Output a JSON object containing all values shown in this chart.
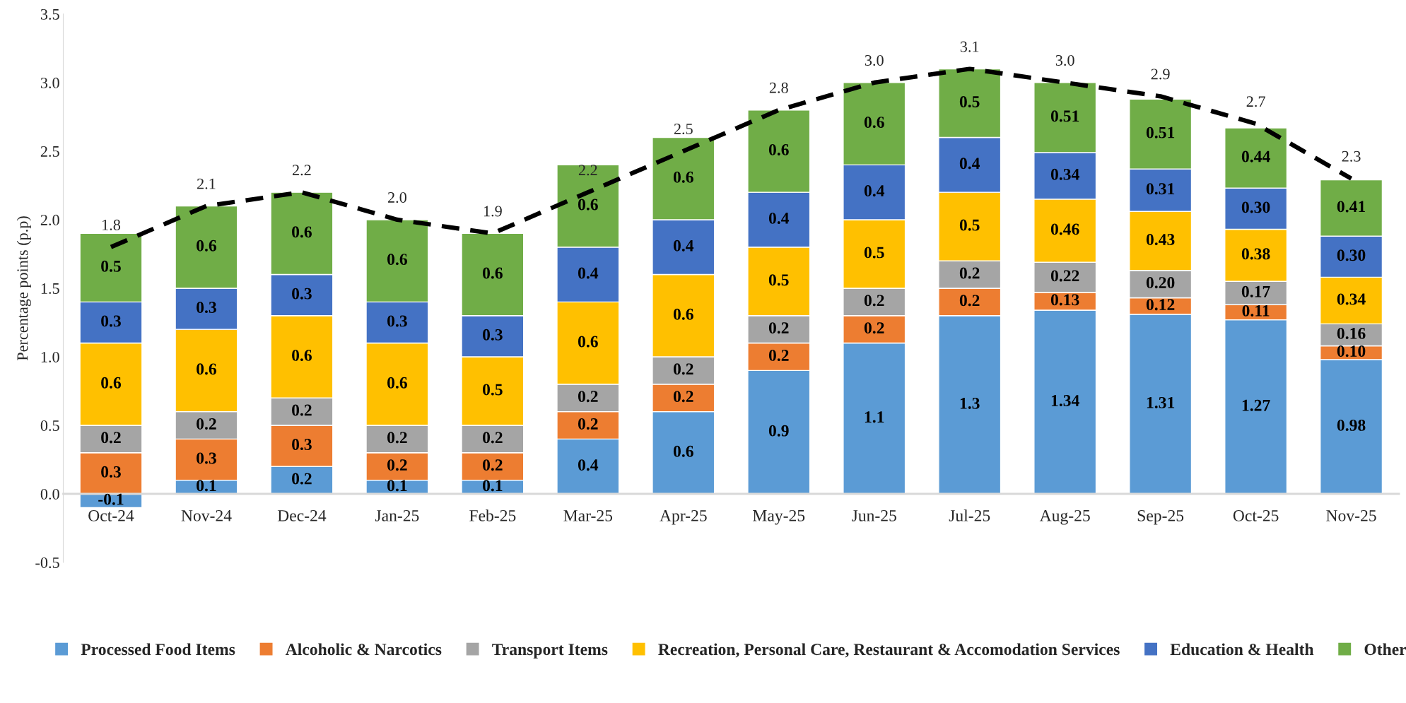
{
  "chart_data": {
    "type": "bar",
    "stacked": true,
    "ylabel": "Percentage points (p.p)",
    "categories": [
      "Oct-24",
      "Nov-24",
      "Dec-24",
      "Jan-25",
      "Feb-25",
      "Mar-25",
      "Apr-25",
      "May-25",
      "Jun-25",
      "Jul-25",
      "Aug-25",
      "Sep-25",
      "Oct-25",
      "Nov-25"
    ],
    "ylim": [
      -0.5,
      3.5
    ],
    "yticks": [
      {
        "value": -0.5,
        "label": "-0.5"
      },
      {
        "value": 0,
        "label": "0.0"
      },
      {
        "value": 0.5,
        "label": "0.5"
      },
      {
        "value": 1,
        "label": "1.0"
      },
      {
        "value": 1.5,
        "label": "1.5"
      },
      {
        "value": 2,
        "label": "2.0"
      },
      {
        "value": 2.5,
        "label": "2.5"
      },
      {
        "value": 3,
        "label": "3.0"
      },
      {
        "value": 3.5,
        "label": "3.5"
      }
    ],
    "grid": false,
    "legend": "bottom",
    "series": [
      {
        "name": "Processed Food Items",
        "color": "#5b9bd5",
        "values": [
          -0.1,
          0.1,
          0.2,
          0.1,
          0.1,
          0.4,
          0.6,
          0.9,
          1.1,
          1.3,
          1.34,
          1.31,
          1.27,
          0.98
        ],
        "value_labels": [
          "-0.1",
          "0.1",
          "0.2",
          "0.1",
          "0.1",
          "0.4",
          "0.6",
          "0.9",
          "1.1",
          "1.3",
          "1.34",
          "1.31",
          "1.27",
          "0.98"
        ]
      },
      {
        "name": "Alcoholic & Narcotics",
        "color": "#ed7d31",
        "values": [
          0.3,
          0.3,
          0.3,
          0.2,
          0.2,
          0.2,
          0.2,
          0.2,
          0.2,
          0.2,
          0.13,
          0.12,
          0.11,
          0.1
        ],
        "value_labels": [
          "0.3",
          "0.3",
          "0.3",
          "0.2",
          "0.2",
          "0.2",
          "0.2",
          "0.2",
          "0.2",
          "0.2",
          "0.13",
          "0.12",
          "0.11",
          "0.10"
        ]
      },
      {
        "name": "Transport Items",
        "color": "#a5a5a5",
        "values": [
          0.2,
          0.2,
          0.2,
          0.2,
          0.2,
          0.2,
          0.2,
          0.2,
          0.2,
          0.2,
          0.22,
          0.2,
          0.17,
          0.16
        ],
        "value_labels": [
          "0.2",
          "0.2",
          "0.2",
          "0.2",
          "0.2",
          "0.2",
          "0.2",
          "0.2",
          "0.2",
          "0.2",
          "0.22",
          "0.20",
          "0.17",
          "0.16"
        ]
      },
      {
        "name": "Recreation, Personal Care, Restaurant & Accomodation Services",
        "color": "#ffc000",
        "values": [
          0.6,
          0.6,
          0.6,
          0.6,
          0.5,
          0.6,
          0.6,
          0.5,
          0.5,
          0.5,
          0.46,
          0.43,
          0.38,
          0.34
        ],
        "value_labels": [
          "0.6",
          "0.6",
          "0.6",
          "0.6",
          "0.5",
          "0.6",
          "0.6",
          "0.5",
          "0.5",
          "0.5",
          "0.46",
          "0.43",
          "0.38",
          "0.34"
        ]
      },
      {
        "name": "Education & Health",
        "color": "#4472c4",
        "values": [
          0.3,
          0.3,
          0.3,
          0.3,
          0.3,
          0.4,
          0.4,
          0.4,
          0.4,
          0.4,
          0.34,
          0.31,
          0.3,
          0.3
        ],
        "value_labels": [
          "0.3",
          "0.3",
          "0.3",
          "0.3",
          "0.3",
          "0.4",
          "0.4",
          "0.4",
          "0.4",
          "0.4",
          "0.34",
          "0.31",
          "0.30",
          "0.30"
        ]
      },
      {
        "name": "Other",
        "color": "#70ad47",
        "values": [
          0.5,
          0.6,
          0.6,
          0.6,
          0.6,
          0.6,
          0.6,
          0.6,
          0.6,
          0.5,
          0.51,
          0.51,
          0.44,
          0.41
        ],
        "value_labels": [
          "0.5",
          "0.6",
          "0.6",
          "0.6",
          "0.6",
          "0.6",
          "0.6",
          "0.6",
          "0.6",
          "0.5",
          "0.51",
          "0.51",
          "0.44",
          "0.41"
        ]
      },
      {
        "type": "line",
        "color": "#000000",
        "line_style": "dashed",
        "marker": "none",
        "values": [
          1.8,
          2.1,
          2.2,
          2.0,
          1.9,
          2.2,
          2.5,
          2.8,
          3.0,
          3.1,
          3.0,
          2.9,
          2.7,
          2.3
        ],
        "value_labels": [
          "1.8",
          "2.1",
          "2.2",
          "2.0",
          "1.9",
          "2.2",
          "2.5",
          "2.8",
          "3.0",
          "3.1",
          "3.0",
          "2.9",
          "2.7",
          "2.3"
        ]
      }
    ]
  }
}
